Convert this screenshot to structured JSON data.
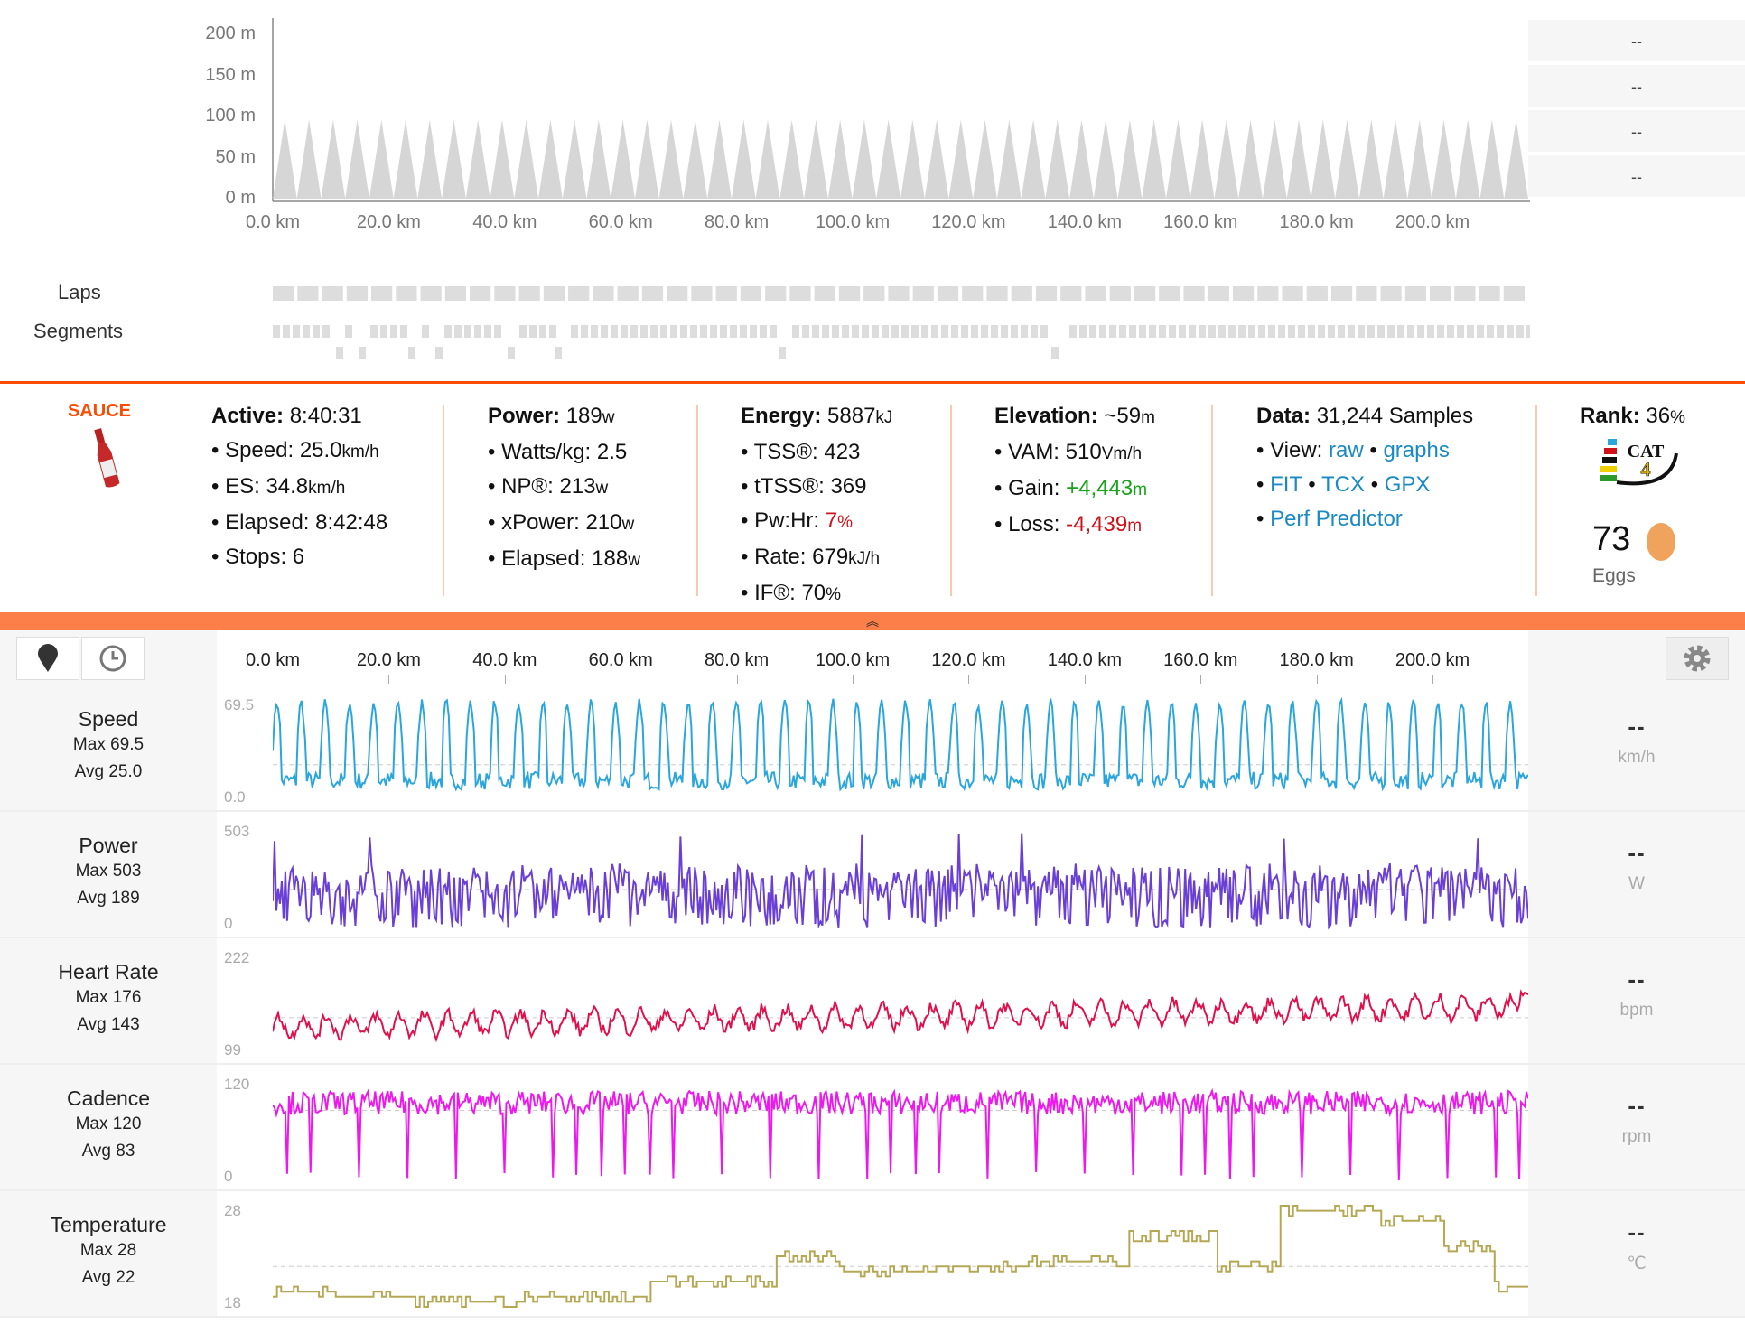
{
  "elevation_chart": {
    "y_ticks": [
      "200 m",
      "150 m",
      "100 m",
      "50 m",
      "0 m"
    ],
    "x_ticks": [
      "0.0 km",
      "20.0 km",
      "40.0 km",
      "60.0 km",
      "80.0 km",
      "100.0 km",
      "120.0 km",
      "140.0 km",
      "160.0 km",
      "180.0 km",
      "200.0 km"
    ],
    "right_values": [
      "--",
      "--",
      "--",
      "--"
    ],
    "fill_color": "#d6d6d6"
  },
  "laps_label": "Laps",
  "segments_label": "Segments",
  "summary": {
    "logo_text": "SAUCE",
    "active": {
      "title": "Active:",
      "value": "8:40:31",
      "items": [
        {
          "label": "Speed:",
          "value": "25.0",
          "unit": "km/h"
        },
        {
          "label": "ES:",
          "value": "34.8",
          "unit": "km/h"
        },
        {
          "label": "Elapsed:",
          "value": "8:42:48",
          "unit": ""
        },
        {
          "label": "Stops:",
          "value": "6",
          "unit": ""
        }
      ]
    },
    "power": {
      "title": "Power:",
      "value": "189",
      "unit": "w",
      "items": [
        {
          "label": "Watts/kg:",
          "value": "2.5",
          "unit": ""
        },
        {
          "label": "NP®:",
          "value": "213",
          "unit": "w"
        },
        {
          "label": "xPower:",
          "value": "210",
          "unit": "w"
        },
        {
          "label": "Elapsed:",
          "value": "188",
          "unit": "w"
        }
      ]
    },
    "energy": {
      "title": "Energy:",
      "value": "5887",
      "unit": "kJ",
      "items": [
        {
          "label": "TSS®:",
          "value": "423",
          "unit": ""
        },
        {
          "label": "tTSS®:",
          "value": "369",
          "unit": ""
        },
        {
          "label": "Pw:Hr:",
          "value": "7",
          "unit": "%"
        },
        {
          "label": "Rate:",
          "value": "679",
          "unit": "kJ/h"
        },
        {
          "label": "IF®:",
          "value": "70",
          "unit": "%"
        }
      ]
    },
    "elevation": {
      "title": "Elevation:",
      "value": "~59",
      "unit": "m",
      "items": [
        {
          "label": "VAM:",
          "value": "510",
          "unit": "Vm/h"
        },
        {
          "label": "Gain:",
          "value": "+4,443",
          "unit": "m"
        },
        {
          "label": "Loss:",
          "value": "-4,439",
          "unit": "m"
        }
      ]
    },
    "data": {
      "title": "Data:",
      "value": "31,244 Samples",
      "view_label": "View:",
      "raw": "raw",
      "graphs": "graphs",
      "fit": "FIT",
      "tcx": "TCX",
      "gpx": "GPX",
      "perf": "Perf Predictor"
    },
    "rank": {
      "title": "Rank:",
      "value": "36",
      "unit": "%",
      "badge": "CAT 4",
      "eggs_count": "73",
      "eggs_label": "Eggs"
    },
    "colors": {
      "positive": "#1aa31a",
      "negative": "#d0111a",
      "link": "#1a8ac4",
      "accent": "#fc4c02"
    }
  },
  "toolbar": {
    "pin_icon": "map-pin-icon",
    "clock_icon": "clock-icon",
    "gear_icon": "gear-icon"
  },
  "streams": [
    {
      "name": "Speed",
      "max_label": "Max 69.5",
      "avg_label": "Avg 25.0",
      "ymax": "69.5",
      "ymin": "0.0",
      "unit": "km/h",
      "value": "--",
      "color": "#2aa6dd",
      "range": [
        0,
        69.5
      ],
      "avg": 25.0
    },
    {
      "name": "Power",
      "max_label": "Max 503",
      "avg_label": "Avg 189",
      "ymax": "503",
      "ymin": "0",
      "unit": "W",
      "value": "--",
      "color": "#6a3fd6",
      "range": [
        0,
        503
      ],
      "avg": 189
    },
    {
      "name": "Heart Rate",
      "max_label": "Max 176",
      "avg_label": "Avg 143",
      "ymax": "222",
      "ymin": "99",
      "unit": "bpm",
      "value": "--",
      "color": "#e0104d",
      "range": [
        99,
        222
      ],
      "avg": 143
    },
    {
      "name": "Cadence",
      "max_label": "Max 120",
      "avg_label": "Avg 83",
      "ymax": "120",
      "ymin": "0",
      "unit": "rpm",
      "value": "--",
      "color": "#ee18ee",
      "range": [
        0,
        120
      ],
      "avg": 83
    },
    {
      "name": "Temperature",
      "max_label": "Max 28",
      "avg_label": "Avg 22",
      "ymax": "28",
      "ymin": "18",
      "unit": "℃",
      "value": "--",
      "color": "#b5a855",
      "range": [
        18,
        28
      ],
      "avg": 22
    }
  ]
}
